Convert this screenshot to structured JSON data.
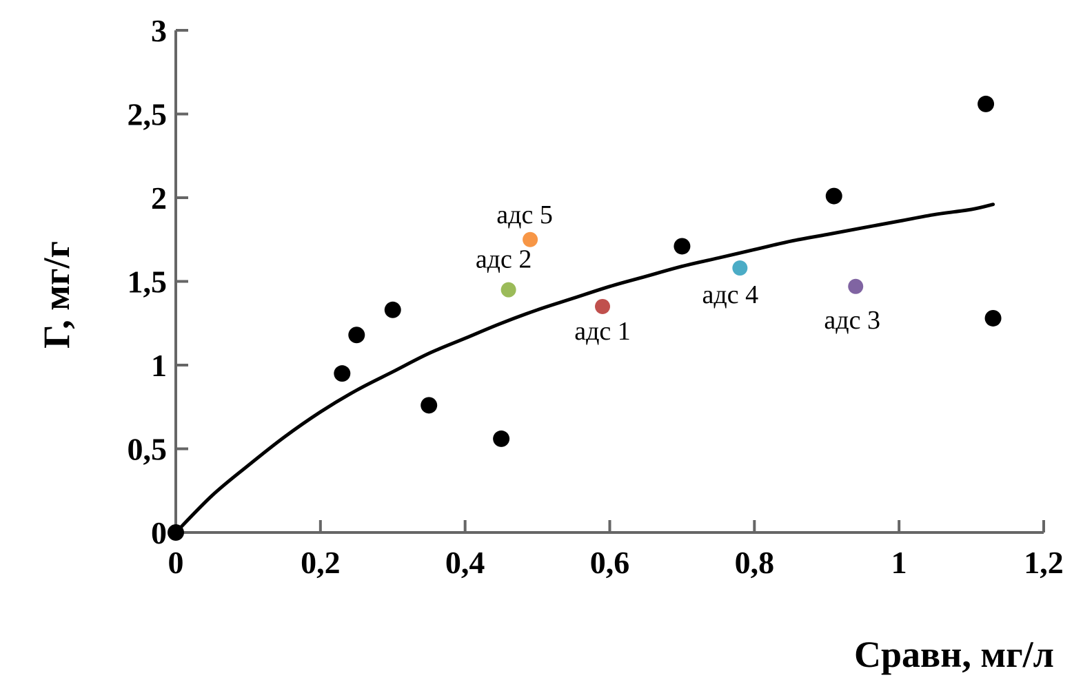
{
  "chart_data": {
    "type": "scatter",
    "title": "",
    "xlabel": "Сравн, мг/л",
    "ylabel": "Г, мг/г",
    "xlim": [
      0,
      1.2
    ],
    "ylim": [
      0,
      3
    ],
    "grid": false,
    "legend": "none",
    "axis_color": "#666666",
    "background_color": "#ffffff",
    "x_ticks": [
      {
        "value": 0,
        "label": "0"
      },
      {
        "value": 0.2,
        "label": "0,2"
      },
      {
        "value": 0.4,
        "label": "0,4"
      },
      {
        "value": 0.6,
        "label": "0,6"
      },
      {
        "value": 0.8,
        "label": "0,8"
      },
      {
        "value": 1,
        "label": "1"
      },
      {
        "value": 1.2,
        "label": "1,2"
      }
    ],
    "y_ticks": [
      {
        "value": 0,
        "label": "0"
      },
      {
        "value": 0.5,
        "label": "0,5"
      },
      {
        "value": 1,
        "label": "1"
      },
      {
        "value": 1.5,
        "label": "1,5"
      },
      {
        "value": 2,
        "label": "2"
      },
      {
        "value": 2.5,
        "label": "2,5"
      },
      {
        "value": 3,
        "label": "3"
      }
    ],
    "series": [
      {
        "name": "experimental-points",
        "type": "scatter",
        "color": "#000000",
        "marker_radius": 12,
        "points": [
          [
            0,
            0
          ],
          [
            0.23,
            0.95
          ],
          [
            0.25,
            1.18
          ],
          [
            0.3,
            1.33
          ],
          [
            0.35,
            0.76
          ],
          [
            0.45,
            0.56
          ],
          [
            0.7,
            1.71
          ],
          [
            0.91,
            2.01
          ],
          [
            1.12,
            2.56
          ],
          [
            1.13,
            1.28
          ]
        ]
      },
      {
        "name": "isotherm-fit-curve",
        "type": "line",
        "color": "#000000",
        "stroke_width": 5,
        "points": [
          [
            0,
            0
          ],
          [
            0.05,
            0.22
          ],
          [
            0.1,
            0.4
          ],
          [
            0.15,
            0.57
          ],
          [
            0.2,
            0.72
          ],
          [
            0.25,
            0.85
          ],
          [
            0.3,
            0.96
          ],
          [
            0.35,
            1.07
          ],
          [
            0.4,
            1.16
          ],
          [
            0.45,
            1.25
          ],
          [
            0.5,
            1.33
          ],
          [
            0.55,
            1.4
          ],
          [
            0.6,
            1.47
          ],
          [
            0.65,
            1.53
          ],
          [
            0.7,
            1.59
          ],
          [
            0.75,
            1.64
          ],
          [
            0.8,
            1.69
          ],
          [
            0.85,
            1.74
          ],
          [
            0.9,
            1.78
          ],
          [
            0.95,
            1.82
          ],
          [
            1.0,
            1.86
          ],
          [
            1.05,
            1.9
          ],
          [
            1.1,
            1.93
          ],
          [
            1.13,
            1.96
          ]
        ]
      },
      {
        "name": "labeled-adsorbents",
        "type": "scatter",
        "marker_radius": 11,
        "points": [
          {
            "label": "адс 1",
            "x": 0.59,
            "y": 1.35,
            "color": "#C0504D",
            "label_dx": 0,
            "label_dy": 48
          },
          {
            "label": "адс 2",
            "x": 0.46,
            "y": 1.45,
            "color": "#9BBB59",
            "label_dx": -7,
            "label_dy": -32
          },
          {
            "label": "адс 3",
            "x": 0.94,
            "y": 1.47,
            "color": "#8064A2",
            "label_dx": -5,
            "label_dy": 61
          },
          {
            "label": "адс 4",
            "x": 0.78,
            "y": 1.58,
            "color": "#4BACC6",
            "label_dx": -14,
            "label_dy": 51
          },
          {
            "label": "адс 5",
            "x": 0.49,
            "y": 1.75,
            "color": "#F79646",
            "label_dx": -8,
            "label_dy": -24
          }
        ]
      }
    ]
  }
}
